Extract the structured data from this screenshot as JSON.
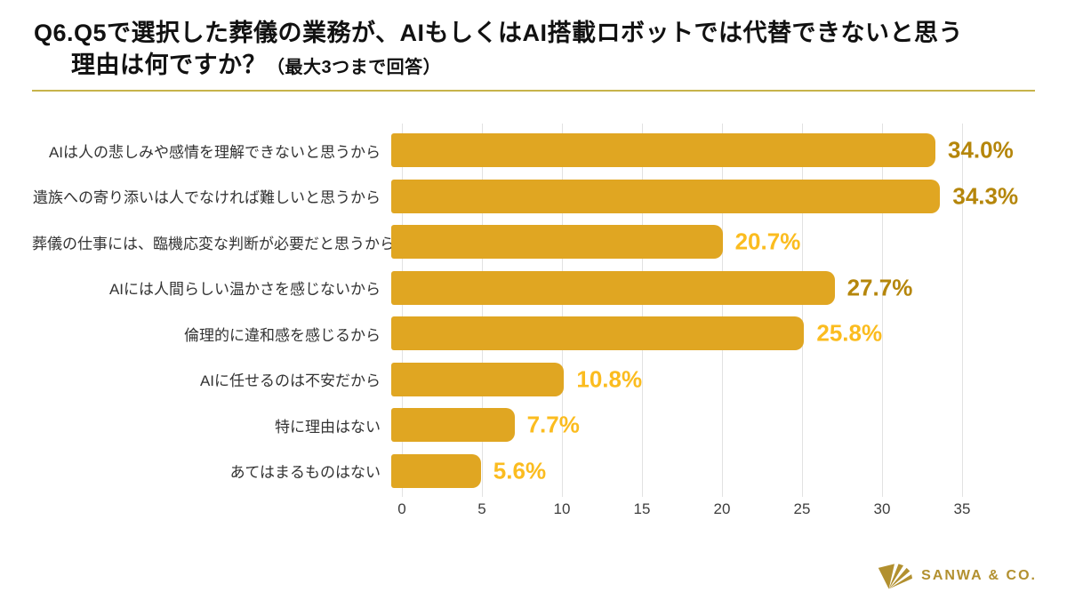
{
  "header": {
    "line1": "Q6.Q5で選択した葬儀の業務が、AIもしくはAI搭載ロボットでは代替できないと思う",
    "line2_main": "理由は何ですか？",
    "line2_note": "（最大3つまで回答）"
  },
  "chart_data": {
    "type": "bar",
    "orientation": "horizontal",
    "title": "Q6. 葬儀の業務がAI・AI搭載ロボットでは代替できないと思う理由（最大3つまで回答）",
    "xlabel": "",
    "ylabel": "",
    "xlim": [
      0,
      36
    ],
    "ticks": [
      0,
      5,
      10,
      15,
      20,
      25,
      30,
      35
    ],
    "grid": true,
    "legend": false,
    "categories": [
      "AIは人の悲しみや感情を理解できないと思うから",
      "遺族への寄り添いは人でなければ難しいと思うから",
      "葬儀の仕事には、臨機応変な判断が必要だと思うから",
      "AIには人間らしい温かさを感じないから",
      "倫理的に違和感を感じるから",
      "AIに任せるのは不安だから",
      "特に理由はない",
      "あてはまるものはない"
    ],
    "values": [
      34.0,
      34.3,
      20.7,
      27.7,
      25.8,
      10.8,
      7.7,
      5.6
    ],
    "items": [
      {
        "label": "AIは人の悲しみや感情を理解できないと思うから",
        "value": 34.0,
        "display": "34.0%",
        "emphasis": true
      },
      {
        "label": "遺族への寄り添いは人でなければ難しいと思うから",
        "value": 34.3,
        "display": "34.3%",
        "emphasis": true
      },
      {
        "label": "葬儀の仕事には、臨機応変な判断が必要だと思うから",
        "value": 20.7,
        "display": "20.7%",
        "emphasis": false
      },
      {
        "label": "AIには人間らしい温かさを感じないから",
        "value": 27.7,
        "display": "27.7%",
        "emphasis": true
      },
      {
        "label": "倫理的に違和感を感じるから",
        "value": 25.8,
        "display": "25.8%",
        "emphasis": false
      },
      {
        "label": "AIに任せるのは不安だから",
        "value": 10.8,
        "display": "10.8%",
        "emphasis": false
      },
      {
        "label": "特に理由はない",
        "value": 7.7,
        "display": "7.7%",
        "emphasis": false
      },
      {
        "label": "あてはまるものはない",
        "value": 5.6,
        "display": "5.6%",
        "emphasis": false
      }
    ],
    "bar_color": "#e0a622",
    "value_color_emphasis": "#b5860b",
    "value_color_normal": "#fbbc1f"
  },
  "footer": {
    "logo_text": "SANWA & CO.",
    "logo_color": "#b2902f"
  }
}
